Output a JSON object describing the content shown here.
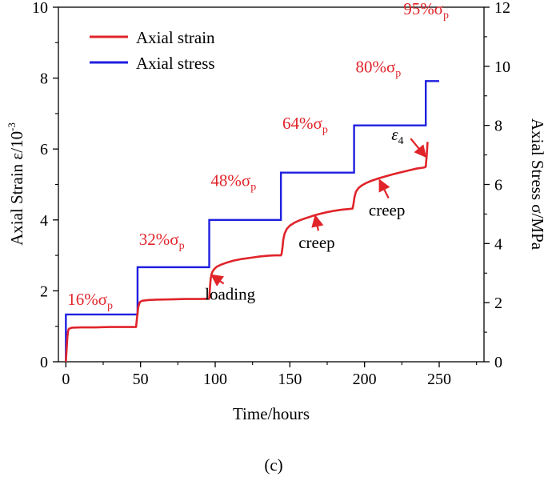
{
  "chart_data": {
    "type": "line",
    "xlabel": "Time/hours",
    "ylabel_left": "Axial Strain ε/10",
    "ylabel_left_exp": "-3",
    "ylabel_right": "Axial Stress σ/MPa",
    "caption": "(c)",
    "xlim": [
      -5,
      280
    ],
    "ylim_left": [
      0,
      10
    ],
    "ylim_right": [
      0,
      12
    ],
    "x_ticks": [
      "0",
      "50",
      "100",
      "150",
      "200",
      "250"
    ],
    "y_left_ticks": [
      "0",
      "2",
      "4",
      "6",
      "8",
      "10"
    ],
    "y_right_ticks": [
      "0",
      "2",
      "4",
      "6",
      "8",
      "10",
      "12"
    ],
    "legend": {
      "placement": "top-left",
      "items": [
        {
          "label": "Axial strain",
          "color": "#e0242a"
        },
        {
          "label": "Axial stress",
          "color": "#1f1fe0"
        }
      ]
    },
    "series": [
      {
        "name": "Axial strain",
        "axis": "left",
        "color": "#e0242a",
        "x": [
          0,
          0.5,
          1,
          1.5,
          2,
          4,
          10,
          20,
          30,
          40,
          47,
          47.8,
          48.5,
          49.5,
          51,
          55,
          60,
          70,
          80,
          90,
          96,
          96.5,
          97,
          97.6,
          98.3,
          99.5,
          101,
          104,
          108,
          112,
          118,
          125,
          130,
          135,
          140,
          144,
          144.5,
          145,
          145.6,
          146.5,
          148,
          150,
          153,
          156,
          160,
          165,
          170,
          175,
          180,
          185,
          190,
          192,
          192.6,
          193.3,
          194.3,
          196,
          198,
          201,
          205,
          210,
          215,
          220,
          225,
          230,
          235,
          240,
          241,
          241.6,
          242.2
        ],
        "values": [
          0,
          0.35,
          0.7,
          0.87,
          0.93,
          0.96,
          0.97,
          0.97,
          0.98,
          0.98,
          0.98,
          1.3,
          1.55,
          1.68,
          1.72,
          1.74,
          1.75,
          1.76,
          1.77,
          1.77,
          1.78,
          2.1,
          2.35,
          2.48,
          2.55,
          2.62,
          2.68,
          2.74,
          2.8,
          2.85,
          2.9,
          2.94,
          2.97,
          2.99,
          3.0,
          3.0,
          3.05,
          3.2,
          3.45,
          3.62,
          3.75,
          3.84,
          3.92,
          3.98,
          4.04,
          4.11,
          4.17,
          4.22,
          4.26,
          4.29,
          4.31,
          4.32,
          4.45,
          4.65,
          4.8,
          4.9,
          4.97,
          5.04,
          5.11,
          5.18,
          5.24,
          5.3,
          5.35,
          5.4,
          5.45,
          5.48,
          5.5,
          5.8,
          6.2
        ]
      },
      {
        "name": "Axial stress",
        "axis": "right",
        "color": "#1f1fe0",
        "x": [
          0,
          0,
          48,
          48,
          96,
          96,
          144,
          144,
          193,
          193,
          241,
          241,
          250
        ],
        "values": [
          0,
          1.6,
          1.6,
          3.2,
          3.2,
          4.8,
          4.8,
          6.4,
          6.4,
          8.0,
          8.0,
          9.5,
          9.5
        ]
      }
    ],
    "annotations": {
      "stress_levels": [
        {
          "text": "16%σ",
          "sub": "p",
          "x": 1,
          "y_left": 1.6
        },
        {
          "text": "32%σ",
          "sub": "p",
          "x": 49,
          "y_left": 3.3
        },
        {
          "text": "48%σ",
          "sub": "p",
          "x": 97,
          "y_left": 4.95
        },
        {
          "text": "64%σ",
          "sub": "p",
          "x": 145,
          "y_left": 6.57
        },
        {
          "text": "80%σ",
          "sub": "p",
          "x": 194,
          "y_left": 8.16
        },
        {
          "text": "95%σ",
          "sub": "p",
          "x": 226,
          "y_left": 9.8
        }
      ],
      "arrows": [
        {
          "label": "loading",
          "label_x": 110,
          "label_y_left": 1.75,
          "tip_x": 97.5,
          "tip_y_left": 2.45
        },
        {
          "label": "creep",
          "label_x": 168,
          "label_y_left": 3.2,
          "tip_x": 167,
          "tip_y_left": 4.12
        },
        {
          "label": "creep",
          "label_x": 215,
          "label_y_left": 4.12,
          "tip_x": 210,
          "tip_y_left": 5.13
        },
        {
          "label": "ε",
          "sub": "4",
          "label_x": 218,
          "label_y_left": 6.25,
          "tip_x": 241,
          "tip_y_left": 5.78
        }
      ]
    }
  }
}
